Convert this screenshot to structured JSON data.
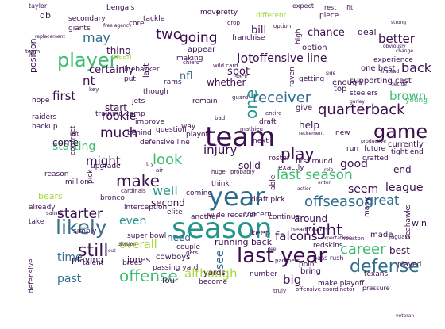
{
  "palette": {
    "background": "#ffffff",
    "dark": "#3b0f4f",
    "blue": "#2f6d8e",
    "teal": "#23968b",
    "green": "#3fbc73",
    "lime": "#a6d83a"
  },
  "words": [
    {
      "text": "team"
    },
    {
      "text": "season"
    },
    {
      "text": "year"
    },
    {
      "text": "last year"
    },
    {
      "text": "player"
    },
    {
      "text": "likely"
    },
    {
      "text": "game"
    },
    {
      "text": "defense"
    },
    {
      "text": "one"
    },
    {
      "text": "offense"
    },
    {
      "text": "still"
    },
    {
      "text": "play"
    },
    {
      "text": "make"
    },
    {
      "text": "last season"
    },
    {
      "text": "receiver"
    },
    {
      "text": "offseason"
    },
    {
      "text": "right"
    },
    {
      "text": "two"
    },
    {
      "text": "quarterback"
    },
    {
      "text": "starter"
    },
    {
      "text": "much"
    },
    {
      "text": "look"
    },
    {
      "text": "going"
    },
    {
      "text": "career"
    },
    {
      "text": "injury"
    },
    {
      "text": "lot"
    },
    {
      "text": "offensive line"
    },
    {
      "text": "good"
    },
    {
      "text": "great"
    },
    {
      "text": "may"
    },
    {
      "text": "back"
    },
    {
      "text": "better"
    },
    {
      "text": "nt"
    },
    {
      "text": "first"
    },
    {
      "text": "well"
    },
    {
      "text": "falcons"
    },
    {
      "text": "league"
    },
    {
      "text": "brown"
    },
    {
      "text": "rookie"
    },
    {
      "text": "might"
    },
    {
      "text": "seem"
    },
    {
      "text": "even"
    },
    {
      "text": "time"
    },
    {
      "text": "past"
    },
    {
      "text": "big"
    },
    {
      "text": "although"
    },
    {
      "text": "starting"
    },
    {
      "text": "chance"
    },
    {
      "text": "certainly"
    },
    {
      "text": "bill"
    },
    {
      "text": "spot"
    },
    {
      "text": "nfl"
    },
    {
      "text": "thing"
    },
    {
      "text": "first round"
    },
    {
      "text": "overall"
    },
    {
      "text": "solid"
    },
    {
      "text": "second"
    },
    {
      "text": "end"
    },
    {
      "text": "need"
    },
    {
      "text": "see"
    },
    {
      "text": "best"
    },
    {
      "text": "whether"
    },
    {
      "text": "start"
    },
    {
      "text": "come"
    },
    {
      "text": "help"
    },
    {
      "text": "around"
    },
    {
      "text": "running back"
    },
    {
      "text": "bears"
    },
    {
      "text": "playing"
    },
    {
      "text": "jones"
    },
    {
      "text": "deal"
    },
    {
      "text": "option"
    },
    {
      "text": "one best"
    },
    {
      "text": "tight end"
    },
    {
      "text": "position"
    },
    {
      "text": "supporting cast"
    },
    {
      "text": "currently"
    },
    {
      "text": "win"
    },
    {
      "text": "cowboys"
    },
    {
      "text": "keep"
    },
    {
      "text": "made"
    },
    {
      "text": "four"
    },
    {
      "text": "yards"
    },
    {
      "text": "bring"
    },
    {
      "text": "super bowl"
    },
    {
      "text": "draft pick"
    },
    {
      "text": "head coach"
    },
    {
      "text": "already"
    },
    {
      "text": "take"
    },
    {
      "text": "appear"
    },
    {
      "text": "enough"
    },
    {
      "text": "top"
    },
    {
      "text": "give"
    },
    {
      "text": "qb"
    },
    {
      "text": "young"
    },
    {
      "text": "hope"
    },
    {
      "text": "backup"
    },
    {
      "text": "raiders"
    },
    {
      "text": "jets"
    },
    {
      "text": "though"
    },
    {
      "text": "remain"
    },
    {
      "text": "draft"
    },
    {
      "text": "last"
    },
    {
      "text": "bronco"
    },
    {
      "text": "elite"
    },
    {
      "text": "upgrade"
    },
    {
      "text": "think"
    },
    {
      "text": "pick"
    },
    {
      "text": "reason"
    },
    {
      "text": "improve"
    },
    {
      "text": "question"
    },
    {
      "text": "training camp"
    },
    {
      "text": "roster"
    },
    {
      "text": "coming"
    },
    {
      "text": "another"
    },
    {
      "text": "wide receiver"
    },
    {
      "text": "concern"
    },
    {
      "text": "continue"
    },
    {
      "text": "couple"
    },
    {
      "text": "talent"
    },
    {
      "text": "brees"
    },
    {
      "text": "passing yard"
    },
    {
      "text": "become"
    },
    {
      "text": "number"
    },
    {
      "text": "point"
    },
    {
      "text": "interception"
    },
    {
      "text": "simply"
    },
    {
      "text": "many"
    },
    {
      "text": "played"
    },
    {
      "text": "seahawks"
    },
    {
      "text": "texans"
    },
    {
      "text": "million"
    },
    {
      "text": "contract"
    },
    {
      "text": "linebacker"
    },
    {
      "text": "secondary"
    },
    {
      "text": "tackle"
    },
    {
      "text": "bengals"
    },
    {
      "text": "giants"
    },
    {
      "text": "core"
    },
    {
      "text": "move"
    },
    {
      "text": "pretty"
    },
    {
      "text": "different"
    },
    {
      "text": "piece"
    },
    {
      "text": "steelers"
    },
    {
      "text": "experience"
    },
    {
      "text": "raven"
    },
    {
      "text": "getting"
    },
    {
      "text": "way"
    },
    {
      "text": "behind"
    },
    {
      "text": "playoff"
    },
    {
      "text": "next"
    },
    {
      "text": "exactly"
    },
    {
      "text": "run"
    },
    {
      "text": "future"
    },
    {
      "text": "drafted"
    },
    {
      "text": "new"
    },
    {
      "text": "franchise"
    },
    {
      "text": "high"
    },
    {
      "text": "making"
    },
    {
      "text": "rams"
    },
    {
      "text": "put"
    },
    {
      "text": "mean"
    },
    {
      "text": "defensive line"
    },
    {
      "text": "defensive"
    },
    {
      "text": "redskins"
    },
    {
      "text": "pass rush"
    },
    {
      "text": "make playoff"
    },
    {
      "text": "offensive coordinator"
    },
    {
      "text": "pressure"
    },
    {
      "text": "expect"
    },
    {
      "text": "rest"
    },
    {
      "text": "fit"
    },
    {
      "text": "taylor"
    },
    {
      "text": "wild card"
    },
    {
      "text": "chiefs"
    },
    {
      "text": "option"
    },
    {
      "text": "sack"
    },
    {
      "text": "drop"
    },
    {
      "text": "guard"
    },
    {
      "text": "able"
    },
    {
      "text": "entire"
    },
    {
      "text": "mathieu"
    },
    {
      "text": "probably"
    },
    {
      "text": "huge"
    },
    {
      "text": "cardinals"
    },
    {
      "text": "saints"
    },
    {
      "text": "panthers"
    },
    {
      "text": "truly"
    },
    {
      "text": "houston"
    },
    {
      "text": "jaguars"
    },
    {
      "text": "gets"
    },
    {
      "text": "key"
    },
    {
      "text": "bad"
    },
    {
      "text": "try"
    },
    {
      "text": "left"
    },
    {
      "text": "air"
    },
    {
      "text": "team"
    },
    {
      "text": "free agency"
    },
    {
      "text": "replacement"
    },
    {
      "text": "obviously"
    },
    {
      "text": "change"
    },
    {
      "text": "decide"
    },
    {
      "text": "instead"
    },
    {
      "text": "retirement"
    },
    {
      "text": "division"
    },
    {
      "text": "cut"
    },
    {
      "text": "gurley"
    },
    {
      "text": "expectations"
    },
    {
      "text": "productive"
    },
    {
      "text": "veteran"
    },
    {
      "text": "feel"
    },
    {
      "text": "enter"
    },
    {
      "text": "action"
    },
    {
      "text": "role"
    },
    {
      "text": "side"
    },
    {
      "text": "strong"
    }
  ]
}
